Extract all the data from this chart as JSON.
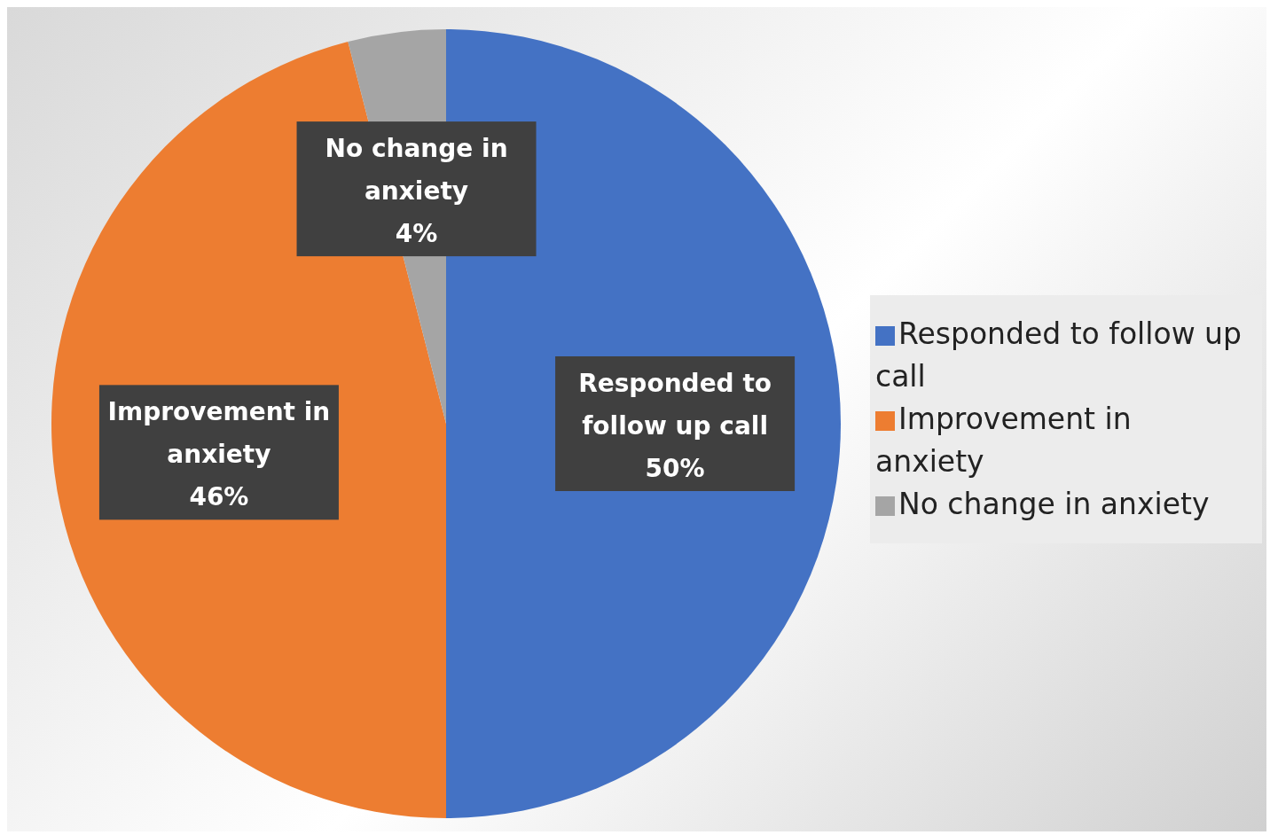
{
  "chart_data": {
    "type": "pie",
    "categories": [
      "Responded to follow up call",
      "Improvement in anxiety",
      "No change in anxiety"
    ],
    "values": [
      50,
      46,
      4
    ],
    "colors": [
      "#4472c4",
      "#ed7d31",
      "#a5a5a5"
    ],
    "value_labels": [
      "50%",
      "46%",
      "4%"
    ],
    "legend": "right"
  }
}
